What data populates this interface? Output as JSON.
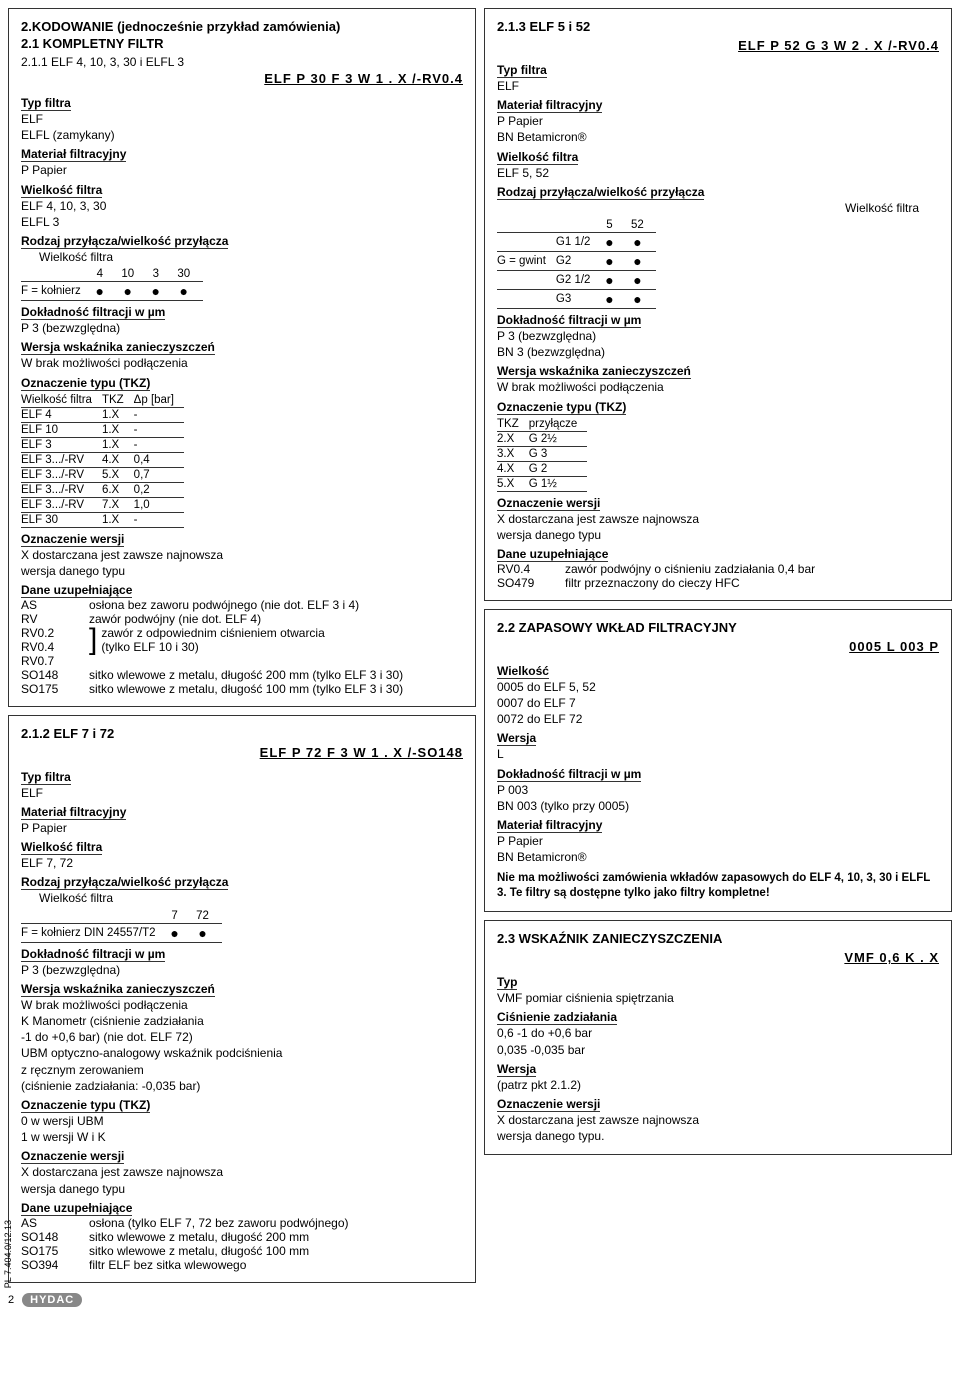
{
  "left_top": {
    "h1": "2.KODOWANIE (jednocześnie przykład zamówienia)",
    "h2": "2.1 KOMPLETNY FILTR",
    "h3": "2.1.1 ELF 4, 10, 3, 30 i ELFL 3",
    "codeline": "ELF  P  30  F  3  W  1 .  X  /-RV0.4",
    "typ_label": "Typ filtra",
    "typ1": "ELF",
    "typ2": "ELFL (zamykany)",
    "mat_label": "Materiał filtracyjny",
    "mat1": "P        Papier",
    "wiel_label": "Wielkość filtra",
    "wiel1": "ELF     4, 10, 3, 30",
    "wiel2": "ELFL   3",
    "rod_label": "Rodzaj przyłącza/wielkość przyłącza",
    "rod_sub": "Wielkość filtra",
    "rod_h": [
      "",
      "4",
      "10",
      "3",
      "30"
    ],
    "rod_r": [
      "F = kołnierz",
      "●",
      "●",
      "●",
      "●"
    ],
    "dok_label": "Dokładność filtracji w µm",
    "dok1": "P      3 (bezwzględna)",
    "wsk_label": "Wersja wskaźnika zanieczyszczeń",
    "wsk1": "W     brak możliwości podłączenia",
    "tkz_label": "Oznaczenie typu (TKZ)",
    "tkz_hdr": [
      "Wielkość filtra",
      "TKZ",
      "Δp [bar]"
    ],
    "tkz_rows": [
      [
        "ELF 4",
        "1.X",
        "-"
      ],
      [
        "ELF 10",
        "1.X",
        "-"
      ],
      [
        "ELF 3",
        "1.X",
        "-"
      ],
      [
        "ELF 3.../-RV",
        "4.X",
        "0,4"
      ],
      [
        "ELF 3.../-RV",
        "5.X",
        "0,7"
      ],
      [
        "ELF 3.../-RV",
        "6.X",
        "0,2"
      ],
      [
        "ELF 3.../-RV",
        "7.X",
        "1,0"
      ],
      [
        "ELF 30",
        "1.X",
        "-"
      ]
    ],
    "ozw_label": "Oznaczenie wersji",
    "ozw1": "X      dostarczana jest zawsze najnowsza",
    "ozw2": "         wersja danego typu",
    "dane_label": "Dane uzupełniające",
    "dane_rows": [
      [
        "AS",
        "osłona bez zaworu podwójnego (nie dot. ELF 3 i 4)"
      ],
      [
        "RV",
        "zawór podwójny (nie dot. ELF 4)"
      ]
    ],
    "dane_br_keys": [
      "RV0.2",
      "RV0.4",
      "RV0.7"
    ],
    "dane_br_txt": "zawór z odpowiednim ciśnieniem otwarcia\n(tylko ELF 10 i 30)",
    "dane_so": [
      [
        "SO148",
        "sitko wlewowe z metalu, długość 200 mm (tylko ELF 3 i 30)"
      ],
      [
        "SO175",
        "sitko wlewowe z metalu, długość 100 mm (tylko ELF 3 i 30)"
      ]
    ]
  },
  "left_bot": {
    "h3": "2.1.2 ELF 7 i 72",
    "codeline": "ELF  P  72  F  3  W  1 .  X  /-SO148",
    "typ_label": "Typ filtra",
    "typ1": "ELF",
    "mat_label": "Materiał filtracyjny",
    "mat1": "P        Papier",
    "wiel_label": "Wielkość filtra",
    "wiel1": "ELF     7, 72",
    "rod_label": "Rodzaj przyłącza/wielkość przyłącza",
    "rod_sub": "Wielkość filtra",
    "rod_h": [
      "",
      "7",
      "72"
    ],
    "rod_r": [
      "F = kołnierz DIN 24557/T2",
      "●",
      "●"
    ],
    "dok_label": "Dokładność filtracji w µm",
    "dok1": "P      3 (bezwzględna)",
    "wsk_label": "Wersja wskaźnika zanieczyszczeń",
    "wsk1": "W     brak możliwości podłączenia",
    "wsk2": "K      Manometr (ciśnienie zadziałania",
    "wsk3": "         -1 do +0,6 bar) (nie dot. ELF 72)",
    "wsk4": "UBM optyczno-analogowy wskaźnik podciśnienia",
    "wsk5": "         z ręcznym zerowaniem",
    "wsk6": "         (ciśnienie zadziałania: -0,035 bar)",
    "tkz_label": "Oznaczenie typu (TKZ)",
    "tkz1": "0       w wersji UBM",
    "tkz2": "1       w wersji W i K",
    "ozw_label": "Oznaczenie wersji",
    "ozw1": "X      dostarczana jest zawsze najnowsza",
    "ozw2": "         wersja danego typu",
    "dane_label": "Dane uzupełniające",
    "dane_rows": [
      [
        "AS",
        "osłona (tylko ELF 7, 72 bez zaworu podwójnego)"
      ],
      [
        "SO148",
        "sitko wlewowe z metalu, długość 200 mm"
      ],
      [
        "SO175",
        "sitko wlewowe z metalu, długość 100 mm"
      ],
      [
        "SO394",
        "filtr ELF bez sitka wlewowego"
      ]
    ]
  },
  "right_top": {
    "h3": "2.1.3 ELF 5 i 52",
    "codeline": "ELF  P  52  G  3  W  2 .  X  /-RV0.4",
    "typ_label": "Typ filtra",
    "typ1": "ELF",
    "mat_label": "Materiał filtracyjny",
    "mat1": "P        Papier",
    "mat2": "BN      Betamicron®",
    "wiel_label": "Wielkość filtra",
    "wiel1": "ELF     5, 52",
    "rod_label": "Rodzaj przyłącza/wielkość przyłącza",
    "rod_sub": "Wielkość filtra",
    "rod_h": [
      "",
      "5",
      "52"
    ],
    "rod_rows": [
      [
        "",
        "G1 1/2",
        "●",
        "●"
      ],
      [
        "G = gwint",
        "G2",
        "●",
        "●"
      ],
      [
        "",
        "G2 1/2",
        "●",
        "●"
      ],
      [
        "",
        "G3",
        "●",
        "●"
      ]
    ],
    "dok_label": "Dokładność filtracji w µm",
    "dok1": "P      3 (bezwzględna)",
    "dok2": "BN    3 (bezwzględna)",
    "wsk_label": "Wersja wskaźnika zanieczyszczeń",
    "wsk1": "W     brak możliwości podłączenia",
    "tkz_label": "Oznaczenie typu (TKZ)",
    "tkz_hdr": [
      "TKZ",
      "przyłącze"
    ],
    "tkz_rows": [
      [
        "2.X",
        "G 2½"
      ],
      [
        "3.X",
        "G 3"
      ],
      [
        "4.X",
        "G 2"
      ],
      [
        "5.X",
        "G 1½"
      ]
    ],
    "ozw_label": "Oznaczenie wersji",
    "ozw1": "X      dostarczana jest zawsze najnowsza",
    "ozw2": "         wersja danego typu",
    "dane_label": "Dane uzupełniające",
    "dane_rows": [
      [
        "RV0.4",
        "zawór podwójny o ciśnieniu zadziałania 0,4 bar"
      ],
      [
        "SO479",
        "filtr przeznaczony do cieczy HFC"
      ]
    ]
  },
  "right_mid": {
    "h3": "2.2 ZAPASOWY WKŁAD FILTRACYJNY",
    "codeline": "0005  L  003  P",
    "wiel_label": "Wielkość",
    "wiel1": "0005 do ELF 5, 52",
    "wiel2": "0007 do ELF 7",
    "wiel3": "0072 do ELF 72",
    "wer_label": "Wersja",
    "wer1": "L",
    "dok_label": "Dokładność filtracji w µm",
    "dok1": "P      003",
    "dok2": "BN    003 (tylko przy 0005)",
    "mat_label": "Materiał filtracyjny",
    "mat1": "P        Papier",
    "mat2": "BN      Betamicron®",
    "note": "Nie ma możliwości zamówienia wkładów zapasowych do ELF 4, 10, 3, 30 i ELFL 3. Te filtry są dostępne tylko jako filtry kompletne!"
  },
  "right_bot": {
    "h3": "2.3 WSKAŹNIK ZANIECZYSZCZENIA",
    "codeline": "VMF  0,6  K .  X",
    "typ_label": "Typ",
    "typ1": "VMF pomiar ciśnienia spiętrzania",
    "cis_label": "Ciśnienie zadziałania",
    "cis1": "0,6       -1 do +0,6 bar",
    "cis2": "0,035    -0,035 bar",
    "wer_label": "Wersja",
    "wer1": "(patrz pkt 2.1.2)",
    "ozw_label": "Oznaczenie wersji",
    "ozw1": "X      dostarczana jest zawsze najnowsza",
    "ozw2": "         wersja danego typu."
  },
  "footer": {
    "page": "2",
    "brand": "HYDAC",
    "side": "PL 7.404.0/12.13"
  }
}
